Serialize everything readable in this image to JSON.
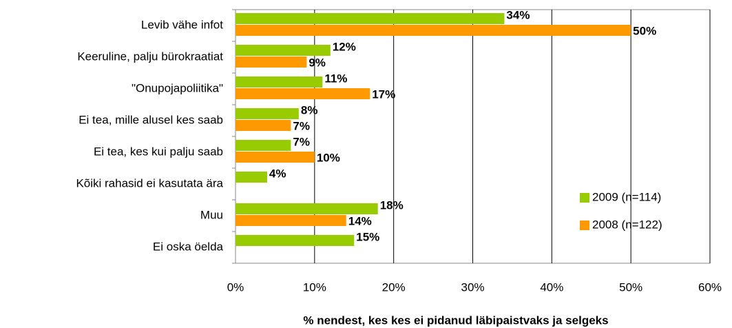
{
  "chart_data": {
    "type": "bar",
    "orientation": "horizontal",
    "x_axis_label": "% nendest, kes kes ei pidanud läbipaistvaks ja selgeks",
    "categories": [
      "Levib vähe infot",
      "Keeruline, palju bürokraatiat",
      "\"Onupojapoliitika\"",
      "Ei tea, mille alusel kes saab",
      "Ei tea, kes kui palju saab",
      "Kõiki rahasid ei kasutata ära",
      "Muu",
      "Ei oska öelda"
    ],
    "series": [
      {
        "name": "2009 (n=114)",
        "color": "#99cc00",
        "values": [
          34,
          12,
          11,
          8,
          7,
          4,
          18,
          15
        ],
        "value_labels": [
          "34%",
          "12%",
          "11%",
          "8%",
          "7%",
          "4%",
          "18%",
          "15%"
        ]
      },
      {
        "name": "2008 (n=122)",
        "color": "#ff9900",
        "values": [
          50,
          9,
          17,
          7,
          10,
          null,
          14,
          null
        ],
        "value_labels": [
          "50%",
          "9%",
          "17%",
          "7%",
          "10%",
          null,
          "14%",
          null
        ]
      }
    ],
    "xlim": [
      0,
      60
    ],
    "xticks": [
      {
        "value": 0,
        "label": "0%"
      },
      {
        "value": 10,
        "label": "10%"
      },
      {
        "value": 20,
        "label": "20%"
      },
      {
        "value": 30,
        "label": "30%"
      },
      {
        "value": 40,
        "label": "40%"
      },
      {
        "value": 50,
        "label": "50%"
      },
      {
        "value": 60,
        "label": "60%"
      }
    ],
    "grid": true,
    "legend_position": "right"
  }
}
